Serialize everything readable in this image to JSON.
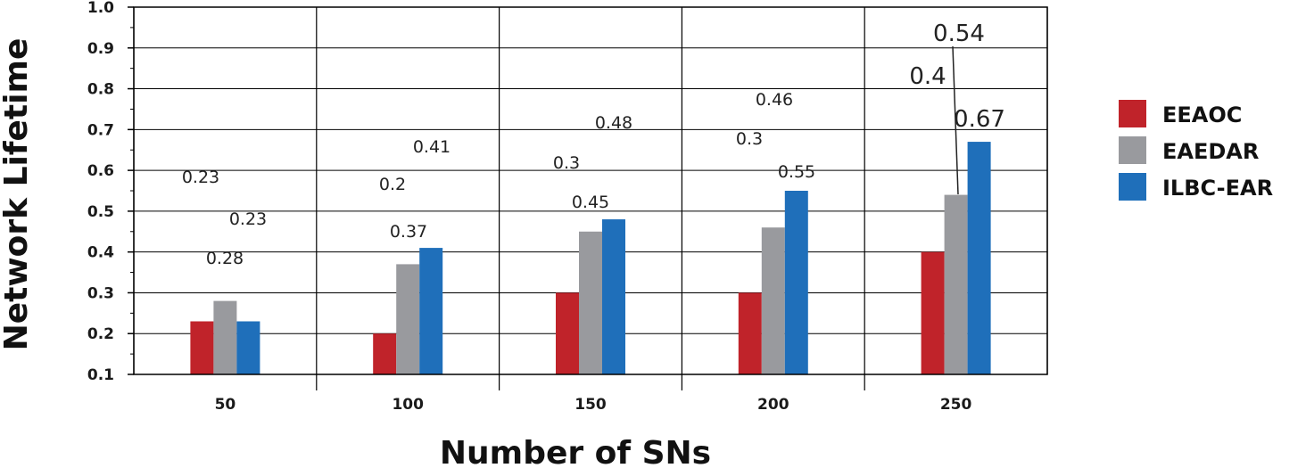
{
  "chart_data": {
    "type": "bar",
    "xlabel": "Number of SNs",
    "ylabel": "Network Lifetime",
    "categories": [
      "50",
      "100",
      "150",
      "200",
      "250"
    ],
    "ylim": [
      0.1,
      1.0
    ],
    "yticks": [
      "0.1",
      "0.2",
      "0.3",
      "0.4",
      "0.5",
      "0.6",
      "0.7",
      "0.8",
      "0.9",
      "1.0"
    ],
    "grid": true,
    "legend_position": "right",
    "series": [
      {
        "name": "EEAOC",
        "color": "#c0232a",
        "values": [
          0.23,
          0.2,
          0.3,
          0.3,
          0.4
        ]
      },
      {
        "name": "EAEDAR",
        "color": "#999a9e",
        "values": [
          0.28,
          0.37,
          0.45,
          0.46,
          0.54
        ]
      },
      {
        "name": "ILBC-EAR",
        "color": "#1f6fba",
        "values": [
          0.23,
          0.41,
          0.48,
          0.55,
          0.67
        ]
      }
    ],
    "data_labels": [
      [
        "0.23",
        "0.2",
        "0.3",
        "0.3",
        "0.4"
      ],
      [
        "0.28",
        "0.37",
        "0.45",
        "0.46",
        "0.54"
      ],
      [
        "0.23",
        "0.41",
        "0.48",
        "0.55",
        "0.67"
      ]
    ]
  }
}
